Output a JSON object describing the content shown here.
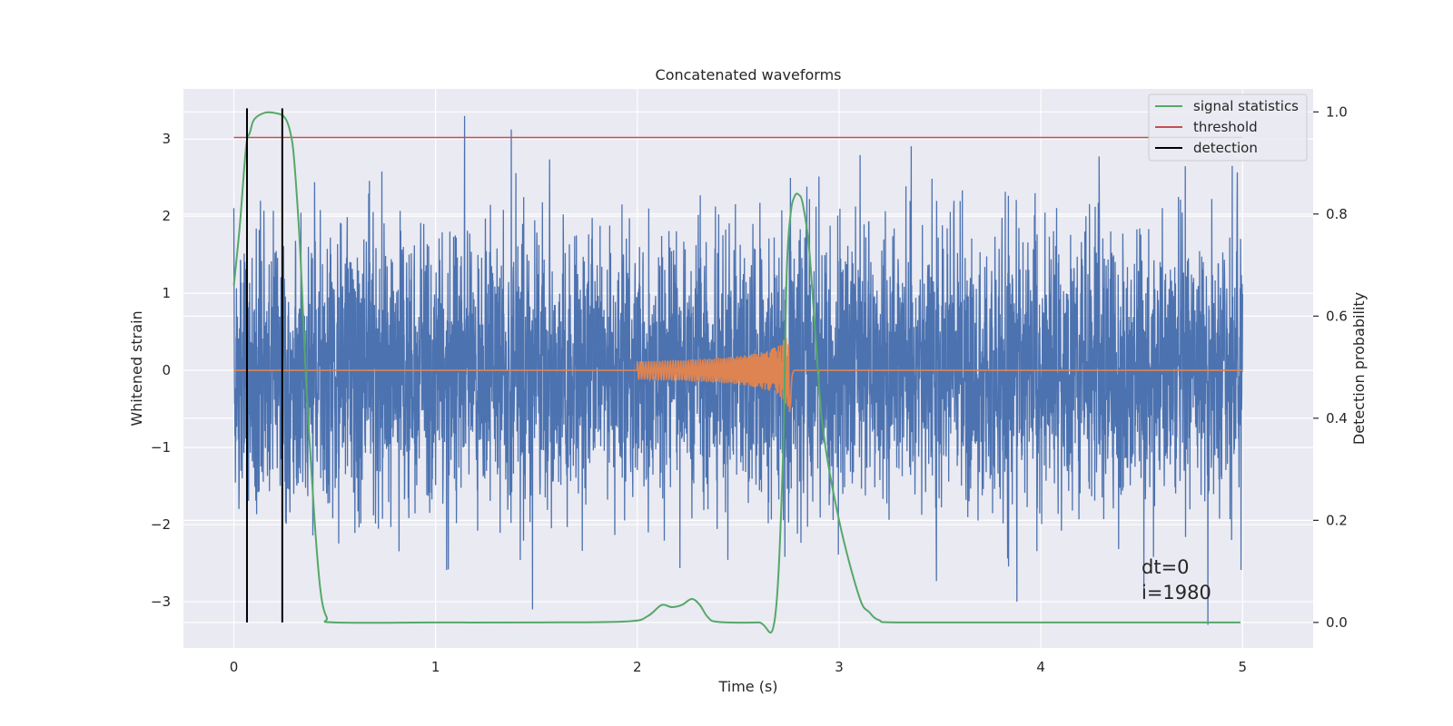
{
  "chart_data": {
    "type": "line",
    "title": "Concatenated waveforms",
    "xlabel": "Time (s)",
    "ylabel": "Whitened strain",
    "y2label": "Detection probability",
    "xlim": [
      -0.25,
      5.35
    ],
    "ylim": [
      -3.6,
      3.65
    ],
    "y2lim": [
      -0.05,
      1.045
    ],
    "xticks": [
      0,
      1,
      2,
      3,
      4,
      5
    ],
    "yticks": [
      -3,
      -2,
      -1,
      0,
      1,
      2,
      3
    ],
    "y2ticks": [
      0.0,
      0.2,
      0.4,
      0.6,
      0.8,
      1.0
    ],
    "grid": true,
    "legend_position": "top-right",
    "legend": [
      "signal statistics",
      "threshold",
      "detection"
    ],
    "colors": {
      "strain": "#4c72b0",
      "template": "#dd8452",
      "signal_statistics": "#55a868",
      "threshold": "#c44e52",
      "detection": "#000000",
      "background": "#eaeaf2",
      "grid": "#ffffff"
    },
    "series": [
      {
        "name": "whitened strain (noise)",
        "axis": "left",
        "description": "Gaussian-like noise, amplitude roughly ±3, sampled over t in [0, 5]",
        "x_range": [
          0,
          5
        ],
        "approx_std": 0.9,
        "approx_peak": 3.3
      },
      {
        "name": "injected chirp",
        "axis": "left",
        "description": "chirp signal from t=2.0 to t=2.76, amplitude rising to ~0.6",
        "x_range": [
          2.0,
          2.76
        ],
        "peak_amplitude": 0.65
      },
      {
        "name": "signal statistics",
        "axis": "right",
        "x": [
          0.0,
          0.03,
          0.06,
          0.08,
          0.1,
          0.15,
          0.2,
          0.25,
          0.28,
          0.3,
          0.33,
          0.36,
          0.4,
          0.43,
          0.46,
          0.5,
          1.0,
          1.5,
          1.95,
          2.05,
          2.12,
          2.17,
          2.22,
          2.27,
          2.31,
          2.35,
          2.4,
          2.6,
          2.68,
          2.72,
          2.74,
          2.76,
          2.78,
          2.8,
          2.82,
          2.85,
          2.88,
          2.92,
          3.0,
          3.1,
          3.15,
          3.2,
          3.3,
          4.0,
          4.99
        ],
        "values": [
          0.66,
          0.78,
          0.93,
          0.96,
          0.985,
          0.998,
          0.998,
          0.99,
          0.96,
          0.9,
          0.72,
          0.46,
          0.2,
          0.06,
          0.01,
          0.0,
          0.0,
          0.0,
          0.002,
          0.012,
          0.034,
          0.03,
          0.034,
          0.046,
          0.034,
          0.01,
          0.001,
          0.0,
          0.003,
          0.3,
          0.68,
          0.8,
          0.835,
          0.838,
          0.82,
          0.74,
          0.58,
          0.38,
          0.2,
          0.05,
          0.02,
          0.004,
          0.0,
          0.0,
          0.0
        ]
      },
      {
        "name": "threshold",
        "axis": "right",
        "x": [
          0,
          5
        ],
        "values": [
          0.95,
          0.95
        ]
      },
      {
        "name": "detection",
        "axis": "right",
        "x": [
          0.065,
          0.24
        ],
        "y_span": [
          0.0,
          1.0
        ]
      }
    ],
    "annotations": [
      "dt=0",
      "i=1980"
    ]
  }
}
